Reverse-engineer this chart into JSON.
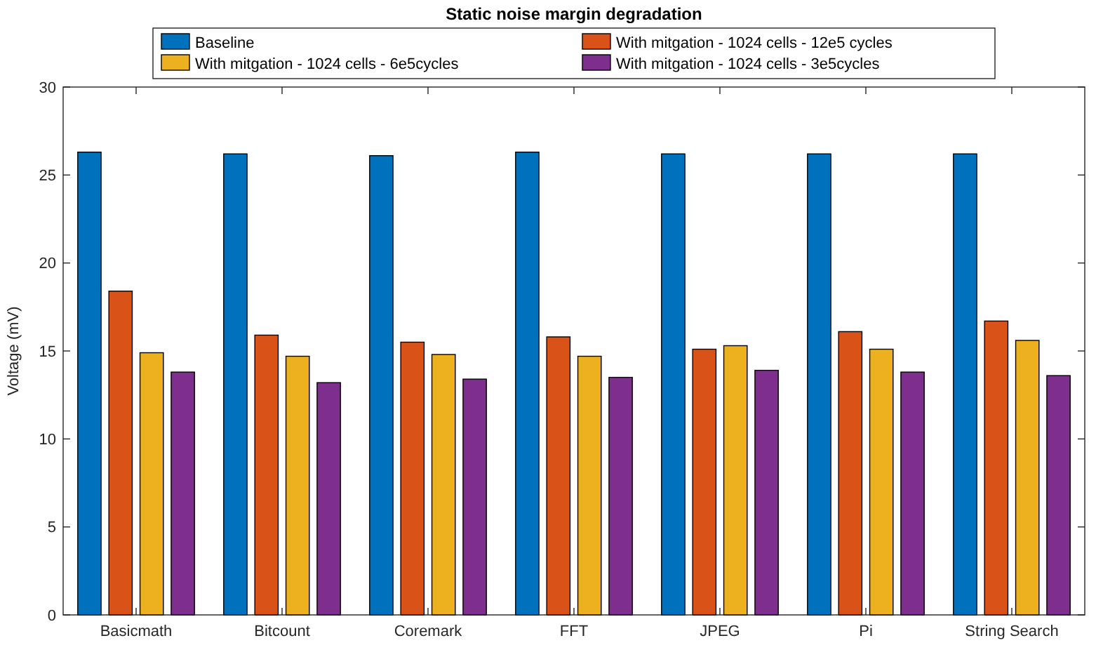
{
  "chart_data": {
    "type": "bar",
    "title": "Static noise margin degradation",
    "ylabel": "Voltage (mV)",
    "categories": [
      "Basicmath",
      "Bitcount",
      "Coremark",
      "FFT",
      "JPEG",
      "Pi",
      "String Search"
    ],
    "series": [
      {
        "name": "Baseline",
        "color": "#0072bd",
        "values": [
          26.3,
          26.2,
          26.1,
          26.3,
          26.2,
          26.2,
          26.2
        ]
      },
      {
        "name": "With mitgation - 1024 cells - 12e5 cycles",
        "color": "#d95319",
        "values": [
          18.4,
          15.9,
          15.5,
          15.8,
          15.1,
          16.1,
          16.7
        ]
      },
      {
        "name": "With mitgation - 1024 cells - 6e5cycles",
        "color": "#edb120",
        "values": [
          14.9,
          14.7,
          14.8,
          14.7,
          15.3,
          15.1,
          15.6
        ]
      },
      {
        "name": "With mitgation - 1024 cells - 3e5cycles",
        "color": "#7e2f8e",
        "values": [
          13.8,
          13.2,
          13.4,
          13.5,
          13.9,
          13.8,
          13.6
        ]
      }
    ],
    "ylim": [
      0,
      30
    ],
    "yticks": [
      0,
      5,
      10,
      15,
      20,
      25,
      30
    ],
    "grid": false,
    "legend": "top"
  }
}
